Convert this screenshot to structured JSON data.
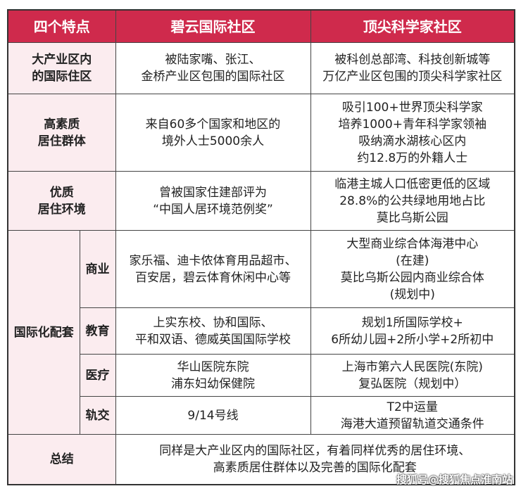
{
  "header": {
    "col1": "四个特点",
    "col2": "碧云国际社区",
    "col3": "顶尖科学家社区"
  },
  "rows": [
    {
      "label": [
        "大产业区内",
        "的国际住区"
      ],
      "biyun": [
        "被陆家嘴、张江、",
        "金桥产业区包围的国际社区"
      ],
      "scientist": [
        "被科创总部湾、科技创新城等",
        "万亿产业区包围的顶尖科学家社区"
      ]
    },
    {
      "label": [
        "高素质",
        "居住群体"
      ],
      "biyun": [
        "来自60多个国家和地区的",
        "境外人士5000余人"
      ],
      "scientist": [
        "吸引100+世界顶尖科学家",
        "培养1000+青年科学家领袖",
        "吸纳滴水湖核心区内",
        "约12.8万的外籍人士"
      ]
    },
    {
      "label": [
        "优质",
        "居住环境"
      ],
      "biyun": [
        "曾被国家住建部评为",
        "“中国人居环境范例奖”"
      ],
      "scientist": [
        "临港主城人口低密更低的区域",
        "28.8%的公共绿地用地占比",
        "莫比乌斯公园"
      ]
    }
  ],
  "intl": {
    "label": "国际化配套",
    "subrows": [
      {
        "label": "商业",
        "biyun": [
          "家乐福、迪卡侬体育用品超市、",
          "百安居，碧云体育休闲中心等"
        ],
        "scientist": [
          "大型商业综合体海港中心",
          "(在建)",
          "莫比乌斯公园内商业综合体",
          "(规划中)"
        ]
      },
      {
        "label": "教育",
        "biyun": [
          "上实东校、协和国际、",
          "平和双语、德威英国国际学校"
        ],
        "scientist": [
          "规划1所国际学校+",
          "6所幼儿园+2所小学+2所初中"
        ]
      },
      {
        "label": "医疗",
        "biyun": [
          "华山医院东院",
          "浦东妇幼保健院"
        ],
        "scientist": [
          "上海市第六人民医院(东院)",
          "复弘医院（规划中）"
        ]
      },
      {
        "label": "轨交",
        "biyun": [
          "9/14号线"
        ],
        "scientist": [
          "T2中运量",
          "海港大道预留轨道交通条件"
        ]
      }
    ]
  },
  "summary": {
    "label": "总结",
    "text": [
      "同样是大产业区内的国际社区，有着同样优秀的居住环境、",
      "高素质居住群体以及完善的国际化配套"
    ]
  },
  "watermark": "搜狐号@搜狐焦点淮南站",
  "colors": {
    "header": "#cf2a4c",
    "label_bg": "#fbecef"
  }
}
